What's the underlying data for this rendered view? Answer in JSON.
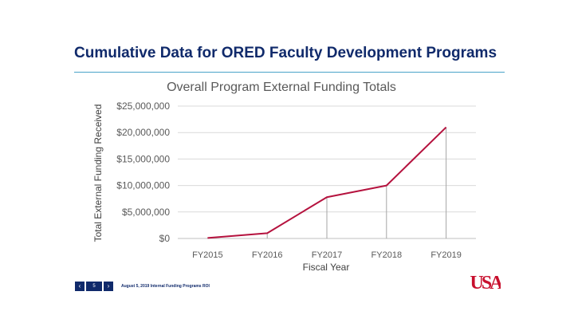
{
  "slide": {
    "title": "Cumulative Data for ORED Faculty Development Programs",
    "footer": {
      "prev_icon": "chevron-left-icon",
      "next_icon": "chevron-right-icon",
      "page_number": "5",
      "text": "August 5, 2019 Internal Funding Programs ROI"
    },
    "logo": {
      "text": "USA",
      "color": "#c8102e"
    }
  },
  "chart_data": {
    "type": "line",
    "title": "Overall Program External Funding Totals",
    "xlabel": "Fiscal Year",
    "ylabel": "Total External Funding Received",
    "categories": [
      "FY2015",
      "FY2016",
      "FY2017",
      "FY2018",
      "FY2019"
    ],
    "values": [
      100000,
      1000000,
      7800000,
      10000000,
      21000000
    ],
    "ylim": [
      0,
      25000000
    ],
    "yticks": [
      0,
      5000000,
      10000000,
      15000000,
      20000000,
      25000000
    ],
    "ytick_labels": [
      "$0",
      "$5,000,000",
      "$10,000,000",
      "$15,000,000",
      "$20,000,000",
      "$25,000,000"
    ],
    "grid": true,
    "drop_lines": true,
    "line_color": "#b5123e",
    "legend": "none"
  }
}
